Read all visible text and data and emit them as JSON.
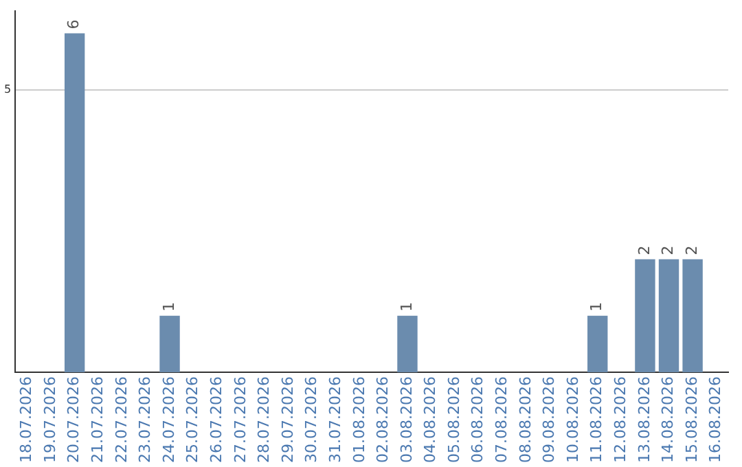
{
  "chart_data": {
    "type": "bar",
    "categories": [
      "18.07.2026",
      "19.07.2026",
      "20.07.2026",
      "21.07.2026",
      "22.07.2026",
      "23.07.2026",
      "24.07.2026",
      "25.07.2026",
      "26.07.2026",
      "27.07.2026",
      "28.07.2026",
      "29.07.2026",
      "30.07.2026",
      "31.07.2026",
      "01.08.2026",
      "02.08.2026",
      "03.08.2026",
      "04.08.2026",
      "05.08.2026",
      "06.08.2026",
      "07.08.2026",
      "08.08.2026",
      "09.08.2026",
      "10.08.2026",
      "11.08.2026",
      "12.08.2026",
      "13.08.2026",
      "14.08.2026",
      "15.08.2026",
      "16.08.2026"
    ],
    "values": [
      0,
      0,
      6,
      0,
      0,
      0,
      1,
      0,
      0,
      0,
      0,
      0,
      0,
      0,
      0,
      0,
      1,
      0,
      0,
      0,
      0,
      0,
      0,
      0,
      1,
      0,
      2,
      2,
      2,
      0
    ],
    "value_labels": [
      null,
      null,
      "6",
      null,
      null,
      null,
      "1",
      null,
      null,
      null,
      null,
      null,
      null,
      null,
      null,
      null,
      "1",
      null,
      null,
      null,
      null,
      null,
      null,
      null,
      "1",
      null,
      "2",
      "2",
      "2",
      null
    ],
    "color": "#6b8cae",
    "ylim": [
      0,
      6.4
    ],
    "yticks": [
      5
    ],
    "grid": "y",
    "legend": false
  }
}
